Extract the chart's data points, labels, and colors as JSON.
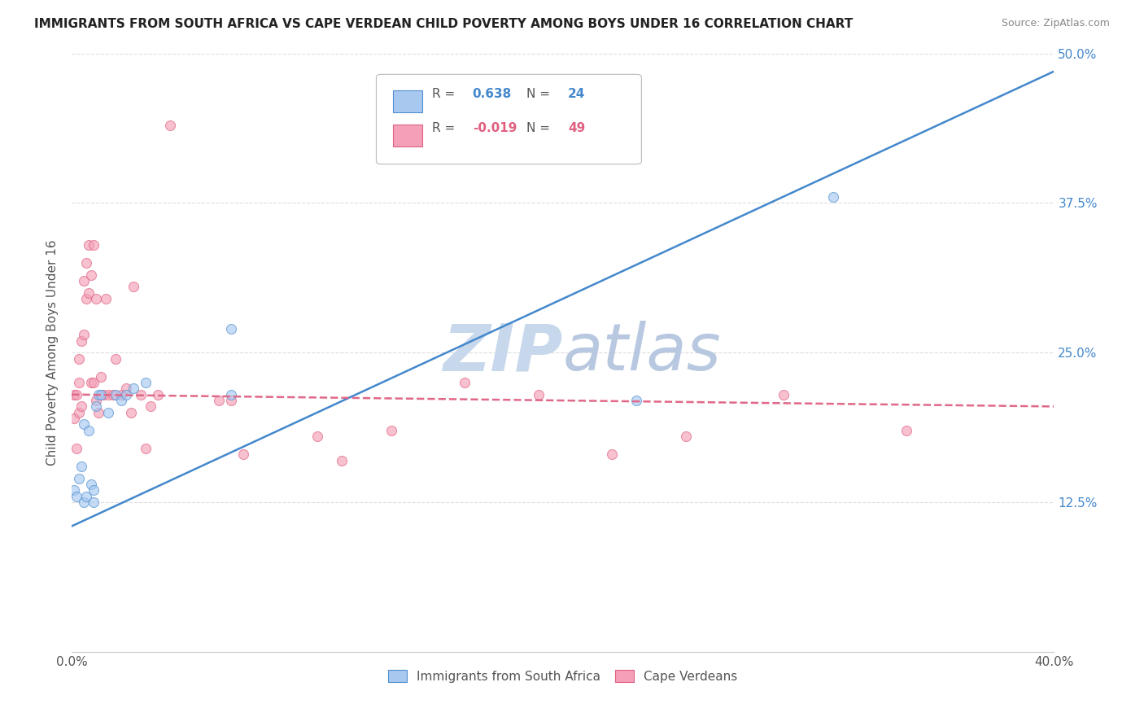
{
  "title": "IMMIGRANTS FROM SOUTH AFRICA VS CAPE VERDEAN CHILD POVERTY AMONG BOYS UNDER 16 CORRELATION CHART",
  "source": "Source: ZipAtlas.com",
  "ylabel": "Child Poverty Among Boys Under 16",
  "xlim": [
    0.0,
    0.4
  ],
  "ylim": [
    0.0,
    0.5
  ],
  "legend_r_blue": "0.638",
  "legend_n_blue": "24",
  "legend_r_pink": "-0.019",
  "legend_n_pink": "49",
  "legend_label_blue": "Immigrants from South Africa",
  "legend_label_pink": "Cape Verdeans",
  "watermark": "ZIPatlas",
  "blue_scatter_x": [
    0.001,
    0.002,
    0.003,
    0.004,
    0.005,
    0.005,
    0.006,
    0.007,
    0.008,
    0.009,
    0.009,
    0.01,
    0.011,
    0.012,
    0.015,
    0.018,
    0.02,
    0.022,
    0.025,
    0.03,
    0.065,
    0.065,
    0.23,
    0.31
  ],
  "blue_scatter_y": [
    0.135,
    0.13,
    0.145,
    0.155,
    0.125,
    0.19,
    0.13,
    0.185,
    0.14,
    0.125,
    0.135,
    0.205,
    0.215,
    0.215,
    0.2,
    0.215,
    0.21,
    0.215,
    0.22,
    0.225,
    0.215,
    0.27,
    0.21,
    0.38
  ],
  "pink_scatter_x": [
    0.001,
    0.001,
    0.002,
    0.002,
    0.003,
    0.003,
    0.003,
    0.004,
    0.004,
    0.005,
    0.005,
    0.006,
    0.006,
    0.007,
    0.007,
    0.008,
    0.008,
    0.009,
    0.009,
    0.01,
    0.01,
    0.011,
    0.012,
    0.013,
    0.014,
    0.015,
    0.017,
    0.018,
    0.02,
    0.022,
    0.024,
    0.025,
    0.028,
    0.03,
    0.032,
    0.035,
    0.04,
    0.06,
    0.065,
    0.07,
    0.1,
    0.11,
    0.13,
    0.16,
    0.19,
    0.22,
    0.25,
    0.29,
    0.34
  ],
  "pink_scatter_y": [
    0.195,
    0.215,
    0.17,
    0.215,
    0.2,
    0.225,
    0.245,
    0.205,
    0.26,
    0.265,
    0.31,
    0.295,
    0.325,
    0.3,
    0.34,
    0.315,
    0.225,
    0.225,
    0.34,
    0.295,
    0.21,
    0.2,
    0.23,
    0.215,
    0.295,
    0.215,
    0.215,
    0.245,
    0.215,
    0.22,
    0.2,
    0.305,
    0.215,
    0.17,
    0.205,
    0.215,
    0.44,
    0.21,
    0.21,
    0.165,
    0.18,
    0.16,
    0.185,
    0.225,
    0.215,
    0.165,
    0.18,
    0.215,
    0.185
  ],
  "blue_line_x0": 0.0,
  "blue_line_y0": 0.105,
  "blue_line_x1": 0.4,
  "blue_line_y1": 0.485,
  "pink_line_x0": 0.0,
  "pink_line_y0": 0.215,
  "pink_line_x1": 0.4,
  "pink_line_y1": 0.205,
  "blue_color": "#A8C8F0",
  "pink_color": "#F4A0B8",
  "blue_edge_color": "#5090D0",
  "pink_edge_color": "#E06080",
  "blue_line_color": "#4488CC",
  "pink_line_color": "#E06888",
  "grid_color": "#DDDDDD",
  "background_color": "#FFFFFF",
  "marker_size": 75,
  "marker_alpha": 0.65,
  "line_width": 1.8
}
